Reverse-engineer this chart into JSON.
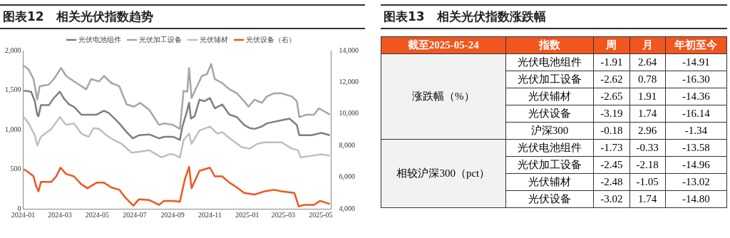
{
  "chart_data": [
    {
      "type": "line",
      "title": "图表12　相关光伏指数趋势",
      "legend": "top",
      "marker": "none",
      "line_style": "solid",
      "xlim": [
        "2024-01-01",
        "2025-05-18"
      ],
      "xticks": [
        "2024-01",
        "2024-03",
        "2024-05",
        "2024-07",
        "2024-09",
        "2024-11",
        "2025-01",
        "2025-03",
        "2025-05"
      ],
      "ylim": [
        0,
        2000
      ],
      "yticks": [
        0,
        500,
        {
          "value": 1000,
          "label": "1,000"
        },
        {
          "value": 1500,
          "label": "1,500"
        },
        {
          "value": 2000,
          "label": "2,000"
        }
      ],
      "y2lim": [
        4000,
        14000
      ],
      "y2ticks": [
        {
          "value": 4000,
          "label": "4,000"
        },
        {
          "value": 6000,
          "label": "6,000"
        },
        {
          "value": 8000,
          "label": "8,000"
        },
        {
          "value": 10000,
          "label": "10,000"
        },
        {
          "value": 12000,
          "label": "12,000"
        },
        {
          "value": 14000,
          "label": "14,000"
        }
      ],
      "series": [
        {
          "name": "光伏电池组件",
          "color": "#7f7f7f",
          "x": [
            "2024-01-02",
            "2024-01-06",
            "2024-01-14",
            "2024-01-20",
            "2024-01-24",
            "2024-01-26",
            "2024-01-30",
            "2024-02-12",
            "2024-02-20",
            "2024-03-01",
            "2024-03-07",
            "2024-03-16",
            "2024-03-24",
            "2024-04-05",
            "2024-04-17",
            "2024-04-30",
            "2024-05-12",
            "2024-05-20",
            "2024-05-28",
            "2024-06-06",
            "2024-06-18",
            "2024-06-28",
            "2024-07-08",
            "2024-07-25",
            "2024-08-10",
            "2024-08-18",
            "2024-09-02",
            "2024-09-13",
            "2024-09-17",
            "2024-09-23",
            "2024-09-28",
            "2024-10-01",
            "2024-10-07",
            "2024-10-15",
            "2024-10-23",
            "2024-11-01",
            "2024-11-09",
            "2024-11-21",
            "2024-12-03",
            "2024-12-15",
            "2024-12-27",
            "2025-01-05",
            "2025-01-13",
            "2025-01-25",
            "2025-02-02",
            "2025-02-14",
            "2025-02-26",
            "2025-03-11",
            "2025-03-23",
            "2025-03-27",
            "2025-04-04",
            "2025-04-16",
            "2025-05-02",
            "2025-05-16"
          ],
          "values": [
            1490,
            1490,
            1480,
            1360,
            1190,
            1170,
            1310,
            1310,
            1400,
            1480,
            1400,
            1320,
            1290,
            1190,
            1190,
            1190,
            1240,
            1210,
            1150,
            1080,
            970,
            890,
            930,
            940,
            890,
            910,
            910,
            870,
            1040,
            1190,
            1340,
            1140,
            1170,
            1380,
            1360,
            1400,
            1270,
            1320,
            1190,
            1160,
            1060,
            1020,
            1010,
            1040,
            1080,
            1100,
            1120,
            1140,
            1060,
            930,
            930,
            930,
            960,
            930
          ]
        },
        {
          "name": "光伏加工设备",
          "color": "#a6a6a6",
          "x": [
            "2024-01-02",
            "2024-01-10",
            "2024-01-18",
            "2024-01-24",
            "2024-01-28",
            "2024-02-12",
            "2024-02-20",
            "2024-03-03",
            "2024-03-11",
            "2024-03-28",
            "2024-04-13",
            "2024-04-21",
            "2024-05-04",
            "2024-05-12",
            "2024-05-24",
            "2024-06-06",
            "2024-06-18",
            "2024-06-30",
            "2024-07-10",
            "2024-07-25",
            "2024-08-10",
            "2024-08-18",
            "2024-09-02",
            "2024-09-13",
            "2024-09-19",
            "2024-09-25",
            "2024-09-28",
            "2024-10-02",
            "2024-10-11",
            "2024-10-19",
            "2024-10-27",
            "2024-11-03",
            "2024-11-09",
            "2024-11-21",
            "2024-12-03",
            "2024-12-15",
            "2024-12-27",
            "2025-01-03",
            "2025-01-13",
            "2025-01-25",
            "2025-02-02",
            "2025-02-14",
            "2025-02-26",
            "2025-03-15",
            "2025-03-23",
            "2025-03-27",
            "2025-04-08",
            "2025-04-20",
            "2025-04-28",
            "2025-05-16"
          ],
          "values": [
            1810,
            1760,
            1640,
            1380,
            1550,
            1570,
            1640,
            1780,
            1680,
            1590,
            1510,
            1640,
            1610,
            1680,
            1590,
            1550,
            1320,
            1290,
            1340,
            1250,
            1060,
            1080,
            1060,
            1010,
            1490,
            1480,
            1780,
            1400,
            1550,
            1680,
            1700,
            1830,
            1640,
            1590,
            1510,
            1460,
            1360,
            1290,
            1380,
            1340,
            1420,
            1460,
            1460,
            1420,
            1360,
            1160,
            1190,
            1190,
            1270,
            1190
          ]
        },
        {
          "name": "光伏辅材",
          "color": "#bfbfbf",
          "x": [
            "2024-01-02",
            "2024-01-10",
            "2024-01-20",
            "2024-01-24",
            "2024-01-30",
            "2024-02-16",
            "2024-03-01",
            "2024-03-11",
            "2024-03-24",
            "2024-04-05",
            "2024-04-17",
            "2024-04-25",
            "2024-05-04",
            "2024-05-16",
            "2024-05-28",
            "2024-06-10",
            "2024-06-26",
            "2024-07-08",
            "2024-07-25",
            "2024-08-14",
            "2024-08-27",
            "2024-09-02",
            "2024-09-13",
            "2024-09-19",
            "2024-09-28",
            "2024-10-02",
            "2024-10-15",
            "2024-11-01",
            "2024-11-13",
            "2024-11-21",
            "2024-12-07",
            "2024-12-23",
            "2025-01-05",
            "2025-01-17",
            "2025-01-29",
            "2025-02-10",
            "2025-02-26",
            "2025-03-15",
            "2025-03-25",
            "2025-03-29",
            "2025-04-16",
            "2025-05-02",
            "2025-05-16"
          ],
          "values": [
            1160,
            1080,
            930,
            800,
            910,
            1010,
            1160,
            1060,
            1080,
            950,
            910,
            1020,
            1010,
            930,
            870,
            820,
            710,
            720,
            740,
            650,
            690,
            690,
            650,
            870,
            950,
            820,
            990,
            1040,
            950,
            970,
            870,
            780,
            760,
            820,
            840,
            840,
            840,
            760,
            740,
            650,
            670,
            690,
            670
          ]
        },
        {
          "name": "光伏设备（右）",
          "color": "#f0561e",
          "axis": "y2",
          "x": [
            "2024-01-02",
            "2024-01-10",
            "2024-01-18",
            "2024-01-22",
            "2024-01-26",
            "2024-01-30",
            "2024-02-16",
            "2024-02-24",
            "2024-03-02",
            "2024-03-11",
            "2024-03-24",
            "2024-04-05",
            "2024-04-15",
            "2024-04-30",
            "2024-05-12",
            "2024-05-24",
            "2024-06-06",
            "2024-06-16",
            "2024-06-29",
            "2024-07-08",
            "2024-07-25",
            "2024-08-10",
            "2024-08-18",
            "2024-09-02",
            "2024-09-13",
            "2024-09-21",
            "2024-09-28",
            "2024-10-02",
            "2024-10-15",
            "2024-11-01",
            "2024-11-09",
            "2024-11-21",
            "2024-12-03",
            "2024-12-15",
            "2024-12-27",
            "2025-01-13",
            "2025-01-29",
            "2025-02-14",
            "2025-02-26",
            "2025-03-19",
            "2025-03-26",
            "2025-04-04",
            "2025-04-20",
            "2025-04-30",
            "2025-05-16"
          ],
          "values": [
            6500,
            6300,
            6050,
            5450,
            5100,
            5700,
            5700,
            6050,
            6600,
            6200,
            6050,
            5550,
            5300,
            5650,
            5650,
            5350,
            5200,
            4700,
            4200,
            4600,
            4550,
            4250,
            4500,
            4500,
            4450,
            5850,
            6650,
            5300,
            6400,
            6600,
            6050,
            6050,
            5650,
            5350,
            5000,
            4900,
            5100,
            5200,
            5100,
            5000,
            4150,
            4250,
            4250,
            4500,
            4300
          ]
        }
      ]
    },
    {
      "type": "heatmap",
      "title": "图表13　相关光伏指数涨跌幅",
      "data_labels": true,
      "categories": [
        "周",
        "月",
        "年初至今"
      ],
      "annotations": [
        "截至2025-05-24",
        "指数",
        "涨跌幅（%）",
        "相较沪深300（pct）"
      ],
      "y_categories": [
        "光伏电池组件",
        "光伏加工设备",
        "光伏辅材",
        "光伏设备",
        "沪深300",
        "光伏电池组件",
        "光伏加工设备",
        "光伏辅材",
        "光伏设备"
      ],
      "cells": [
        [
          -1.91,
          2.64,
          -14.91
        ],
        [
          -2.62,
          0.78,
          -16.3
        ],
        [
          -2.65,
          1.91,
          -14.36
        ],
        [
          -3.19,
          1.74,
          -16.14
        ],
        [
          -0.18,
          2.96,
          -1.34
        ],
        [
          -1.73,
          -0.33,
          -13.58
        ],
        [
          -2.45,
          -2.18,
          -14.96
        ],
        [
          -2.48,
          -1.05,
          -13.02
        ],
        [
          -3.02,
          1.74,
          -14.8
        ]
      ],
      "cell_labels": [
        [
          "-1.91",
          "2.64",
          "-14.91"
        ],
        [
          "-2.62",
          "0.78",
          "-16.30"
        ],
        [
          "-2.65",
          "1.91",
          "-14.36"
        ],
        [
          "-3.19",
          "1.74",
          "-16.14"
        ],
        [
          "-0.18",
          "2.96",
          "-1.34"
        ],
        [
          "-1.73",
          "-0.33",
          "-13.58"
        ],
        [
          "-2.45",
          "-2.18",
          "-14.96"
        ],
        [
          "-2.48",
          "-1.05",
          "-13.02"
        ],
        [
          "-3.02",
          "1.74",
          "-14.80"
        ]
      ]
    }
  ]
}
